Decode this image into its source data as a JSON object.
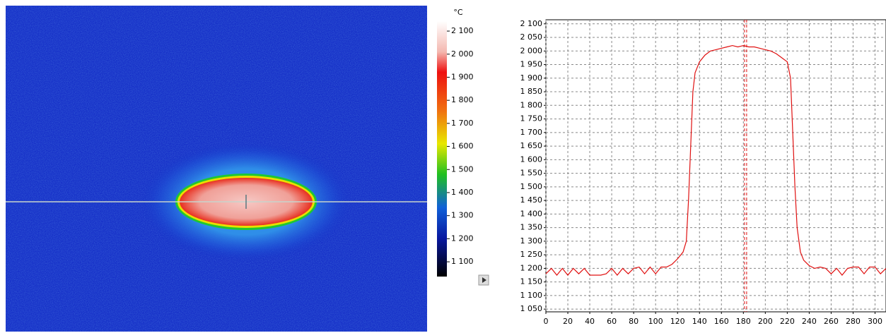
{
  "colorbar": {
    "unit": "°C",
    "lim": [
      1036,
      2143
    ],
    "ticks": [
      {
        "value": 2100,
        "label": "2 100"
      },
      {
        "value": 2000,
        "label": "2 000"
      },
      {
        "value": 1900,
        "label": "1 900"
      },
      {
        "value": 1800,
        "label": "1 800"
      },
      {
        "value": 1700,
        "label": "1 700"
      },
      {
        "value": 1600,
        "label": "1 600"
      },
      {
        "value": 1500,
        "label": "1 500"
      },
      {
        "value": 1400,
        "label": "1 400"
      },
      {
        "value": 1300,
        "label": "1 300"
      },
      {
        "value": 1200,
        "label": "1 200"
      },
      {
        "value": 1100,
        "label": "1 100"
      }
    ]
  },
  "chart_data": {
    "type": "line",
    "color": "#e01010",
    "grid": true,
    "x": [
      0,
      5,
      10,
      15,
      20,
      25,
      30,
      35,
      40,
      45,
      50,
      55,
      60,
      65,
      70,
      75,
      80,
      85,
      90,
      95,
      100,
      105,
      110,
      115,
      120,
      125,
      128,
      130,
      132,
      134,
      136,
      140,
      145,
      150,
      155,
      160,
      165,
      170,
      175,
      180,
      185,
      190,
      195,
      200,
      205,
      210,
      215,
      220,
      223,
      225,
      227,
      229,
      232,
      235,
      240,
      245,
      250,
      255,
      260,
      265,
      270,
      275,
      280,
      285,
      290,
      295,
      300,
      305,
      310
    ],
    "values": [
      1180,
      1200,
      1175,
      1200,
      1175,
      1200,
      1180,
      1200,
      1175,
      1175,
      1175,
      1180,
      1200,
      1175,
      1200,
      1180,
      1200,
      1205,
      1180,
      1205,
      1180,
      1205,
      1205,
      1215,
      1235,
      1260,
      1300,
      1450,
      1650,
      1850,
      1920,
      1960,
      1985,
      2000,
      2005,
      2010,
      2015,
      2020,
      2015,
      2020,
      2015,
      2015,
      2010,
      2005,
      2000,
      1990,
      1975,
      1960,
      1900,
      1700,
      1500,
      1350,
      1260,
      1230,
      1210,
      1200,
      1205,
      1200,
      1180,
      1200,
      1175,
      1200,
      1205,
      1205,
      1180,
      1205,
      1205,
      1180,
      1200
    ],
    "cursor_x": 182,
    "xlim": [
      0,
      310
    ],
    "ylim": [
      1040,
      2115
    ],
    "xticks": [
      0,
      20,
      40,
      60,
      80,
      100,
      120,
      140,
      160,
      180,
      200,
      220,
      240,
      260,
      280,
      300
    ],
    "yticks": [
      {
        "value": 1050,
        "label": "1 050"
      },
      {
        "value": 1100,
        "label": "1 100"
      },
      {
        "value": 1150,
        "label": "1 150"
      },
      {
        "value": 1200,
        "label": "1 200"
      },
      {
        "value": 1250,
        "label": "1 250"
      },
      {
        "value": 1300,
        "label": "1 300"
      },
      {
        "value": 1350,
        "label": "1 350"
      },
      {
        "value": 1400,
        "label": "1 400"
      },
      {
        "value": 1450,
        "label": "1 450"
      },
      {
        "value": 1500,
        "label": "1 500"
      },
      {
        "value": 1550,
        "label": "1 550"
      },
      {
        "value": 1600,
        "label": "1 600"
      },
      {
        "value": 1650,
        "label": "1 650"
      },
      {
        "value": 1700,
        "label": "1 700"
      },
      {
        "value": 1750,
        "label": "1 750"
      },
      {
        "value": 1800,
        "label": "1 800"
      },
      {
        "value": 1850,
        "label": "1 850"
      },
      {
        "value": 1900,
        "label": "1 900"
      },
      {
        "value": 1950,
        "label": "1 950"
      },
      {
        "value": 2000,
        "label": "2 000"
      },
      {
        "value": 2050,
        "label": "2 050"
      },
      {
        "value": 2100,
        "label": "2 100"
      }
    ]
  }
}
